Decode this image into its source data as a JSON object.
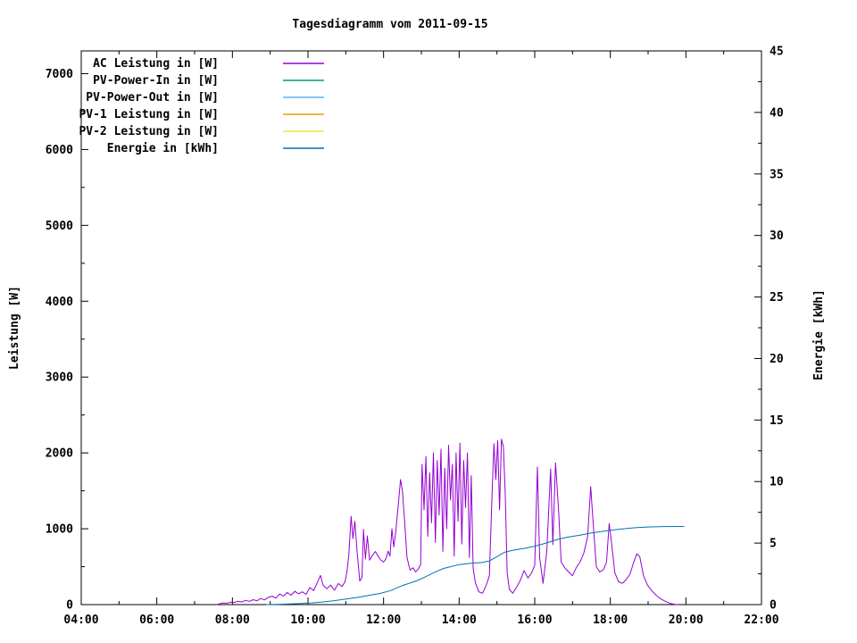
{
  "chart_data": {
    "type": "line",
    "title": "Tagesdiagramm vom 2011-09-15",
    "xlabel": "",
    "ylabel_left": "Leistung [W]",
    "ylabel_right": "Energie [kWh]",
    "grid": "off",
    "legend_position": "top-left-inside",
    "x_axis": {
      "unit": "time-of-day-hours",
      "min_hour": 4,
      "max_hour": 22,
      "minor_step_hours": 1,
      "major_ticks": [
        4,
        6,
        8,
        10,
        12,
        14,
        16,
        18,
        20,
        22
      ],
      "major_tick_labels": [
        "04:00",
        "06:00",
        "08:00",
        "10:00",
        "12:00",
        "14:00",
        "16:00",
        "18:00",
        "20:00",
        "22:00"
      ]
    },
    "y_left_axis": {
      "label": "Leistung [W]",
      "min": 0,
      "max": 7300,
      "minor_step": 500,
      "major_ticks": [
        0,
        1000,
        2000,
        3000,
        4000,
        5000,
        6000,
        7000
      ],
      "major_tick_labels": [
        "0",
        "1000",
        "2000",
        "3000",
        "4000",
        "5000",
        "6000",
        "7000"
      ]
    },
    "y_right_axis": {
      "label": "Energie [kWh]",
      "min": 0,
      "max": 45,
      "minor_step": 2.5,
      "major_ticks": [
        0,
        5,
        10,
        15,
        20,
        25,
        30,
        35,
        40,
        45
      ],
      "major_tick_labels": [
        "0",
        "5",
        "10",
        "15",
        "20",
        "25",
        "30",
        "35",
        "40",
        "45"
      ]
    },
    "series": [
      {
        "name": "AC Leistung in [W]",
        "color": "#9400d3",
        "y_axis": "left",
        "points": [
          [
            7.57,
            0
          ],
          [
            7.65,
            8
          ],
          [
            7.75,
            22
          ],
          [
            7.85,
            18
          ],
          [
            7.95,
            32
          ],
          [
            8.05,
            28
          ],
          [
            8.15,
            45
          ],
          [
            8.25,
            35
          ],
          [
            8.35,
            55
          ],
          [
            8.45,
            42
          ],
          [
            8.55,
            65
          ],
          [
            8.65,
            50
          ],
          [
            8.75,
            80
          ],
          [
            8.85,
            62
          ],
          [
            8.95,
            95
          ],
          [
            9.05,
            112
          ],
          [
            9.15,
            85
          ],
          [
            9.25,
            140
          ],
          [
            9.35,
            112
          ],
          [
            9.45,
            160
          ],
          [
            9.55,
            122
          ],
          [
            9.65,
            175
          ],
          [
            9.75,
            142
          ],
          [
            9.85,
            168
          ],
          [
            9.95,
            135
          ],
          [
            10.05,
            225
          ],
          [
            10.15,
            185
          ],
          [
            10.25,
            295
          ],
          [
            10.33,
            385
          ],
          [
            10.4,
            255
          ],
          [
            10.5,
            210
          ],
          [
            10.6,
            258
          ],
          [
            10.7,
            188
          ],
          [
            10.8,
            278
          ],
          [
            10.9,
            238
          ],
          [
            10.98,
            300
          ],
          [
            11.03,
            430
          ],
          [
            11.08,
            650
          ],
          [
            11.14,
            1165
          ],
          [
            11.19,
            870
          ],
          [
            11.24,
            1100
          ],
          [
            11.3,
            700
          ],
          [
            11.37,
            310
          ],
          [
            11.43,
            360
          ],
          [
            11.47,
            990
          ],
          [
            11.52,
            600
          ],
          [
            11.57,
            905
          ],
          [
            11.63,
            585
          ],
          [
            11.7,
            645
          ],
          [
            11.78,
            700
          ],
          [
            11.85,
            645
          ],
          [
            11.92,
            590
          ],
          [
            12.0,
            560
          ],
          [
            12.07,
            610
          ],
          [
            12.12,
            705
          ],
          [
            12.17,
            640
          ],
          [
            12.22,
            1000
          ],
          [
            12.27,
            760
          ],
          [
            12.32,
            950
          ],
          [
            12.38,
            1270
          ],
          [
            12.45,
            1650
          ],
          [
            12.5,
            1500
          ],
          [
            12.56,
            1080
          ],
          [
            12.62,
            620
          ],
          [
            12.7,
            455
          ],
          [
            12.78,
            485
          ],
          [
            12.85,
            430
          ],
          [
            12.92,
            470
          ],
          [
            12.98,
            530
          ],
          [
            13.02,
            1850
          ],
          [
            13.07,
            1250
          ],
          [
            13.12,
            1950
          ],
          [
            13.17,
            900
          ],
          [
            13.22,
            1740
          ],
          [
            13.27,
            1080
          ],
          [
            13.32,
            2000
          ],
          [
            13.37,
            820
          ],
          [
            13.42,
            1900
          ],
          [
            13.47,
            1180
          ],
          [
            13.52,
            2050
          ],
          [
            13.57,
            700
          ],
          [
            13.62,
            1800
          ],
          [
            13.67,
            1000
          ],
          [
            13.72,
            2100
          ],
          [
            13.77,
            1380
          ],
          [
            13.82,
            1850
          ],
          [
            13.87,
            640
          ],
          [
            13.92,
            2000
          ],
          [
            13.97,
            1100
          ],
          [
            14.02,
            2130
          ],
          [
            14.07,
            800
          ],
          [
            14.12,
            1900
          ],
          [
            14.17,
            1280
          ],
          [
            14.22,
            2000
          ],
          [
            14.27,
            620
          ],
          [
            14.32,
            1700
          ],
          [
            14.37,
            480
          ],
          [
            14.43,
            290
          ],
          [
            14.52,
            170
          ],
          [
            14.62,
            150
          ],
          [
            14.72,
            260
          ],
          [
            14.8,
            380
          ],
          [
            14.87,
            1450
          ],
          [
            14.92,
            2120
          ],
          [
            14.97,
            1650
          ],
          [
            15.02,
            2160
          ],
          [
            15.07,
            1250
          ],
          [
            15.12,
            2180
          ],
          [
            15.17,
            2080
          ],
          [
            15.22,
            1450
          ],
          [
            15.27,
            420
          ],
          [
            15.33,
            200
          ],
          [
            15.42,
            150
          ],
          [
            15.52,
            230
          ],
          [
            15.62,
            320
          ],
          [
            15.72,
            450
          ],
          [
            15.82,
            350
          ],
          [
            15.92,
            420
          ],
          [
            16.0,
            520
          ],
          [
            16.07,
            1815
          ],
          [
            16.13,
            620
          ],
          [
            16.22,
            280
          ],
          [
            16.32,
            700
          ],
          [
            16.42,
            1790
          ],
          [
            16.48,
            790
          ],
          [
            16.55,
            1870
          ],
          [
            16.63,
            1250
          ],
          [
            16.7,
            560
          ],
          [
            16.8,
            480
          ],
          [
            16.9,
            430
          ],
          [
            17.0,
            380
          ],
          [
            17.1,
            490
          ],
          [
            17.2,
            560
          ],
          [
            17.3,
            680
          ],
          [
            17.4,
            900
          ],
          [
            17.48,
            1555
          ],
          [
            17.55,
            1050
          ],
          [
            17.63,
            500
          ],
          [
            17.72,
            430
          ],
          [
            17.82,
            460
          ],
          [
            17.9,
            560
          ],
          [
            17.97,
            1070
          ],
          [
            18.03,
            830
          ],
          [
            18.12,
            420
          ],
          [
            18.22,
            300
          ],
          [
            18.32,
            280
          ],
          [
            18.42,
            330
          ],
          [
            18.52,
            400
          ],
          [
            18.62,
            560
          ],
          [
            18.7,
            670
          ],
          [
            18.78,
            630
          ],
          [
            18.88,
            380
          ],
          [
            18.98,
            260
          ],
          [
            19.1,
            180
          ],
          [
            19.2,
            130
          ],
          [
            19.32,
            80
          ],
          [
            19.45,
            45
          ],
          [
            19.58,
            15
          ],
          [
            19.7,
            5
          ],
          [
            19.78,
            0
          ]
        ]
      },
      {
        "name": "PV-Power-In in [W]",
        "color": "#009e73",
        "y_axis": "left",
        "points": []
      },
      {
        "name": "PV-Power-Out in [W]",
        "color": "#56b4e9",
        "y_axis": "left",
        "points": []
      },
      {
        "name": "PV-1 Leistung in [W]",
        "color": "#e69f00",
        "y_axis": "left",
        "points": []
      },
      {
        "name": "PV-2 Leistung in [W]",
        "color": "#f0e442",
        "y_axis": "left",
        "points": []
      },
      {
        "name": "Energie in [kWh]",
        "color": "#0072b2",
        "y_axis": "right",
        "points": [
          [
            8.9,
            0
          ],
          [
            9.2,
            0.02
          ],
          [
            9.5,
            0.05
          ],
          [
            9.8,
            0.09
          ],
          [
            10.1,
            0.14
          ],
          [
            10.4,
            0.22
          ],
          [
            10.7,
            0.32
          ],
          [
            11.0,
            0.45
          ],
          [
            11.3,
            0.58
          ],
          [
            11.6,
            0.75
          ],
          [
            11.9,
            0.9
          ],
          [
            12.2,
            1.15
          ],
          [
            12.5,
            1.55
          ],
          [
            12.8,
            1.85
          ],
          [
            13.0,
            2.1
          ],
          [
            13.2,
            2.4
          ],
          [
            13.4,
            2.7
          ],
          [
            13.6,
            2.95
          ],
          [
            13.8,
            3.1
          ],
          [
            14.0,
            3.25
          ],
          [
            14.3,
            3.35
          ],
          [
            14.6,
            3.42
          ],
          [
            14.8,
            3.55
          ],
          [
            15.0,
            3.9
          ],
          [
            15.2,
            4.25
          ],
          [
            15.4,
            4.4
          ],
          [
            15.7,
            4.55
          ],
          [
            16.0,
            4.75
          ],
          [
            16.3,
            5.0
          ],
          [
            16.6,
            5.3
          ],
          [
            16.9,
            5.5
          ],
          [
            17.2,
            5.65
          ],
          [
            17.5,
            5.82
          ],
          [
            17.8,
            5.95
          ],
          [
            18.1,
            6.08
          ],
          [
            18.4,
            6.18
          ],
          [
            18.7,
            6.26
          ],
          [
            19.0,
            6.31
          ],
          [
            19.4,
            6.34
          ],
          [
            19.95,
            6.35
          ]
        ]
      }
    ]
  },
  "style": {
    "axis_color": "#000000",
    "background": "#ffffff",
    "text_color": "#000000"
  }
}
